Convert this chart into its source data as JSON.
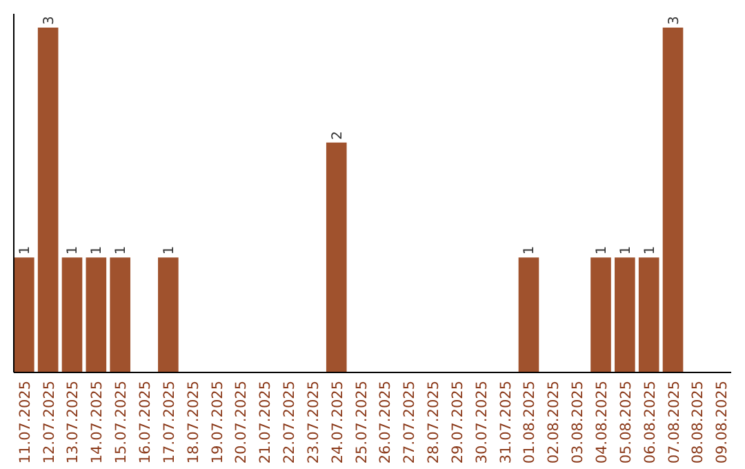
{
  "chart_data": {
    "type": "bar",
    "categories": [
      "11.07.2025",
      "12.07.2025",
      "13.07.2025",
      "14.07.2025",
      "15.07.2025",
      "16.07.2025",
      "17.07.2025",
      "18.07.2025",
      "19.07.2025",
      "20.07.2025",
      "21.07.2025",
      "22.07.2025",
      "23.07.2025",
      "24.07.2025",
      "25.07.2025",
      "26.07.2025",
      "27.07.2025",
      "28.07.2025",
      "29.07.2025",
      "30.07.2025",
      "31.07.2025",
      "01.08.2025",
      "02.08.2025",
      "03.08.2025",
      "04.08.2025",
      "05.08.2025",
      "06.08.2025",
      "07.08.2025",
      "08.08.2025",
      "09.08.2025"
    ],
    "values": [
      1,
      3,
      1,
      1,
      1,
      0,
      1,
      0,
      0,
      0,
      0,
      0,
      0,
      2,
      0,
      0,
      0,
      0,
      0,
      0,
      0,
      1,
      0,
      0,
      1,
      1,
      1,
      3,
      0,
      0
    ],
    "value_labels": [
      "1",
      "3",
      "1",
      "1",
      "1",
      null,
      "1",
      null,
      null,
      null,
      null,
      null,
      null,
      "2",
      null,
      null,
      null,
      null,
      null,
      null,
      null,
      "1",
      null,
      null,
      "1",
      "1",
      "1",
      "3",
      null,
      null
    ],
    "color": "#a0522d",
    "ylim": [
      0,
      3
    ],
    "tick_labels": "x"
  }
}
